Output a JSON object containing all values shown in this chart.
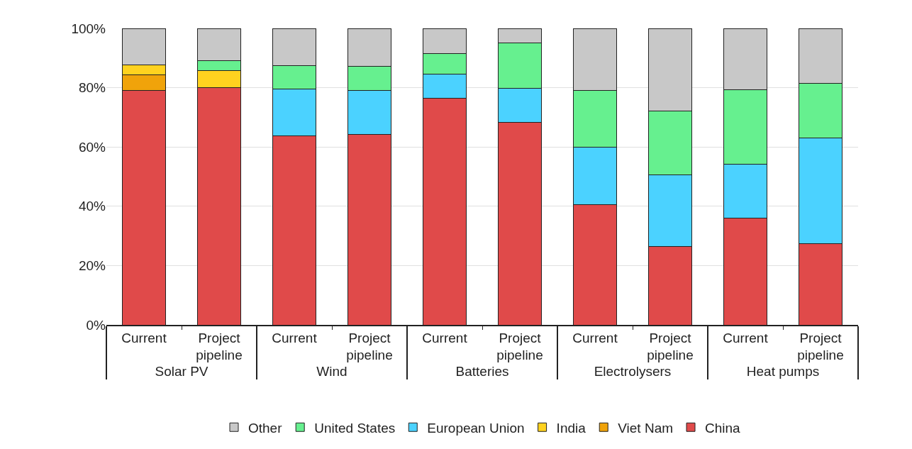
{
  "chart_data": {
    "type": "bar",
    "stacked": true,
    "categories": [
      "Current",
      "Project pipeline",
      "Current",
      "Project pipeline",
      "Current",
      "Project pipeline",
      "Current",
      "Project pipeline",
      "Current",
      "Project pipeline"
    ],
    "annotations": [
      "Solar PV",
      "Wind",
      "Batteries",
      "Electrolysers",
      "Heat pumps"
    ],
    "series": [
      {
        "name": "China",
        "color": "#e04a4a",
        "values": [
          79.0,
          80.0,
          63.8,
          64.3,
          76.4,
          68.2,
          40.6,
          26.4,
          35.9,
          27.3
        ]
      },
      {
        "name": "Viet Nam",
        "color": "#f0a30a",
        "values": [
          5.3,
          null,
          null,
          null,
          null,
          null,
          null,
          null,
          null,
          null
        ]
      },
      {
        "name": "India",
        "color": "#ffd21f",
        "values": [
          3.5,
          5.7,
          null,
          null,
          null,
          null,
          null,
          null,
          null,
          null
        ]
      },
      {
        "name": "European Union",
        "color": "#4bd2ff",
        "values": [
          null,
          null,
          15.8,
          14.7,
          8.2,
          11.5,
          19.3,
          24.2,
          18.3,
          35.8
        ]
      },
      {
        "name": "United States",
        "color": "#66f08f",
        "values": [
          null,
          3.3,
          7.9,
          8.2,
          6.8,
          15.3,
          19.2,
          21.5,
          25.2,
          18.4
        ]
      },
      {
        "name": "Other",
        "color": "#c8c8c8",
        "values": [
          12.2,
          11.0,
          12.5,
          12.8,
          8.6,
          5.0,
          20.9,
          27.9,
          20.6,
          18.5
        ]
      }
    ],
    "ylim": [
      0,
      100
    ],
    "yticks": [
      {
        "value": 0,
        "label": "0%"
      },
      {
        "value": 20,
        "label": "20%"
      },
      {
        "value": 40,
        "label": "40%"
      },
      {
        "value": 60,
        "label": "60%"
      },
      {
        "value": 80,
        "label": "80%"
      },
      {
        "value": 100,
        "label": "100%"
      }
    ],
    "grid": "y",
    "legend": "bottom"
  }
}
